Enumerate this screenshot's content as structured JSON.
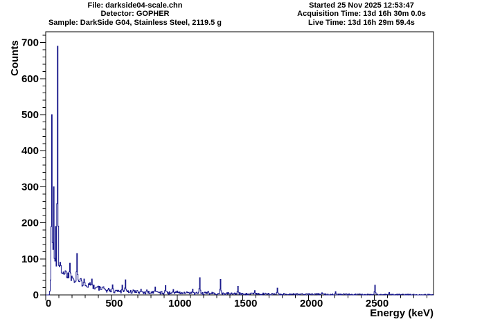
{
  "header": {
    "left": {
      "line1": "File: darkside04-scale.chn",
      "line2": "Detector: GOPHER",
      "line3": "Sample: DarkSide G04, Stainless Steel, 2119.5 g"
    },
    "right": {
      "line1": "Started 25 Nov 2025 12:53:47",
      "line2": "Acquisition Time: 13d 16h 30m 0.0s",
      "line3": "Live Time: 13d 16h 29m 59.4s"
    }
  },
  "chart_data": {
    "type": "line",
    "subtype": "histogram-step-spectrum",
    "title": "",
    "xlabel": "Energy (keV)",
    "ylabel": "Counts",
    "xlim": [
      0,
      2950
    ],
    "ylim": [
      0,
      730
    ],
    "x_major_ticks": [
      0,
      500,
      1000,
      1500,
      2000,
      2500
    ],
    "x_minor_step": 100,
    "y_major_ticks": [
      0,
      100,
      200,
      300,
      400,
      500,
      600,
      700
    ],
    "y_minor_step": 20,
    "grid": "off",
    "legend": "none",
    "line_color": "#19198c",
    "noise_sigma_scale": 1.8,
    "continuum": [
      [
        0,
        0
      ],
      [
        26,
        0
      ],
      [
        30,
        8
      ],
      [
        34,
        22
      ],
      [
        38,
        40
      ],
      [
        43,
        55
      ],
      [
        50,
        58
      ],
      [
        58,
        54
      ],
      [
        66,
        50
      ],
      [
        75,
        52
      ],
      [
        85,
        58
      ],
      [
        95,
        68
      ],
      [
        105,
        76
      ],
      [
        115,
        78
      ],
      [
        125,
        70
      ],
      [
        140,
        63
      ],
      [
        160,
        58
      ],
      [
        185,
        54
      ],
      [
        210,
        48
      ],
      [
        235,
        43
      ],
      [
        260,
        37
      ],
      [
        285,
        33
      ],
      [
        310,
        29
      ],
      [
        340,
        25
      ],
      [
        370,
        21
      ],
      [
        400,
        19
      ],
      [
        440,
        16
      ],
      [
        480,
        13
      ],
      [
        520,
        11.5
      ],
      [
        570,
        10
      ],
      [
        620,
        9
      ],
      [
        680,
        8.2
      ],
      [
        750,
        7.4
      ],
      [
        830,
        6.6
      ],
      [
        920,
        5.8
      ],
      [
        1010,
        5.2
      ],
      [
        1120,
        4.6
      ],
      [
        1250,
        4.0
      ],
      [
        1400,
        3.4
      ],
      [
        1550,
        2.9
      ],
      [
        1700,
        2.4
      ],
      [
        1850,
        2.0
      ],
      [
        2000,
        1.7
      ],
      [
        2150,
        1.45
      ],
      [
        2300,
        1.2
      ],
      [
        2450,
        1.0
      ],
      [
        2600,
        0.85
      ],
      [
        2750,
        0.7
      ],
      [
        2950,
        0.6
      ]
    ],
    "peaks": [
      [
        46.5,
        500
      ],
      [
        63,
        300
      ],
      [
        76,
        190
      ],
      [
        93,
        690
      ],
      [
        186,
        88
      ],
      [
        238.6,
        115
      ],
      [
        295,
        44
      ],
      [
        338,
        34
      ],
      [
        352,
        44
      ],
      [
        511,
        28
      ],
      [
        583,
        27
      ],
      [
        609,
        42
      ],
      [
        665,
        14
      ],
      [
        727,
        16
      ],
      [
        768,
        14
      ],
      [
        835,
        22
      ],
      [
        911,
        26
      ],
      [
        969,
        15
      ],
      [
        1001,
        11
      ],
      [
        1120,
        16
      ],
      [
        1173,
        48
      ],
      [
        1238,
        10
      ],
      [
        1332,
        43
      ],
      [
        1461,
        24
      ],
      [
        1592,
        12
      ],
      [
        1764,
        19
      ],
      [
        2103,
        6
      ],
      [
        2204,
        9
      ],
      [
        2505,
        27
      ],
      [
        2614,
        7
      ]
    ]
  }
}
